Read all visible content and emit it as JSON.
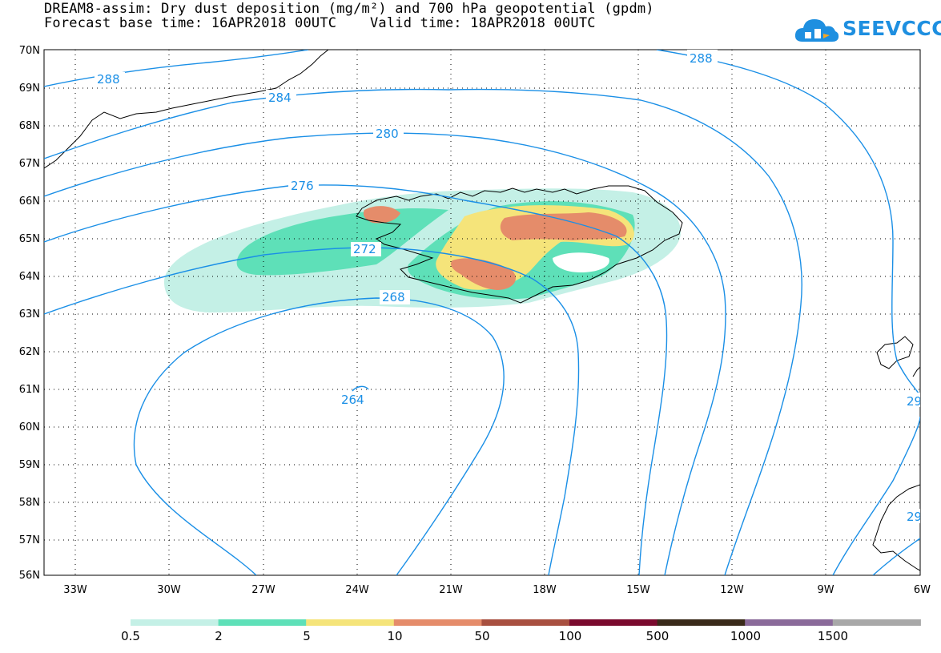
{
  "title_line1": "DREAM8-assim: Dry dust deposition (mg/m²) and 700 hPa geopotential (gpdm)",
  "title_line2": "Forecast base time: 16APR2018 00UTC    Valid time: 18APR2018 00UTC",
  "logo_text": "SEEVCCC",
  "lat_labels": [
    "70N",
    "69N",
    "68N",
    "67N",
    "66N",
    "65N",
    "64N",
    "63N",
    "62N",
    "61N",
    "60N",
    "59N",
    "58N",
    "57N",
    "56N"
  ],
  "lon_labels": [
    "33W",
    "30W",
    "27W",
    "24W",
    "21W",
    "18W",
    "15W",
    "12W",
    "9W",
    "6W"
  ],
  "contour_labels": [
    "288",
    "288",
    "284",
    "280",
    "276",
    "272",
    "268",
    "264",
    "29",
    "29"
  ],
  "legend": {
    "colors": [
      "#c4f0e6",
      "#5ee0b8",
      "#f5e47a",
      "#e58c6a",
      "#a85040",
      "#7a0a2e",
      "#3a2a1a",
      "#8a6a9a",
      "#a8a8a8"
    ],
    "labels": [
      "0.5",
      "2",
      "5",
      "10",
      "50",
      "100",
      "500",
      "1000",
      "1500"
    ]
  },
  "colors": {
    "contour": "#1a8fe6",
    "coast": "#000000",
    "grid": "#000000"
  }
}
